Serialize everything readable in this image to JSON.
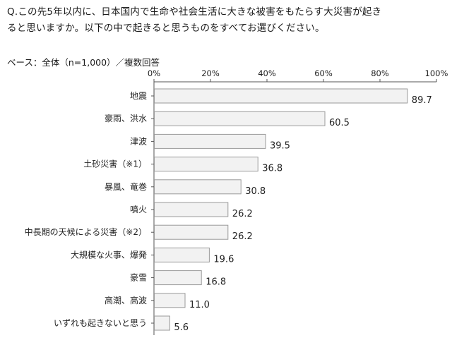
{
  "question": {
    "line1": "Q.この先5年以内に、日本国内で生命や社会生活に大きな被害をもたらす大災害が起き",
    "line2": "ると思いますか。以下の中で起きると思うものをすべてお選びください。"
  },
  "base_note": "ベース：全体（n=1,000）／複数回答",
  "chart_data": {
    "type": "bar",
    "orientation": "horizontal",
    "categories": [
      "地震",
      "豪雨、洪水",
      "津波",
      "土砂災害（※1）",
      "暴風、竜巻",
      "噴火",
      "中長期の天候による災害（※2）",
      "大規模な火事、爆発",
      "豪雪",
      "高潮、高波",
      "いずれも起きないと思う"
    ],
    "values": [
      89.7,
      60.5,
      39.5,
      36.8,
      30.8,
      26.2,
      26.2,
      19.6,
      16.8,
      11.0,
      5.6
    ],
    "value_labels": [
      "89.7",
      "60.5",
      "39.5",
      "36.8",
      "30.8",
      "26.2",
      "26.2",
      "19.6",
      "16.8",
      "11.0",
      "5.6"
    ],
    "xlim": [
      0,
      100
    ],
    "x_ticks": [
      0,
      20,
      40,
      60,
      80,
      100
    ],
    "x_tick_labels": [
      "0%",
      "20%",
      "40%",
      "60%",
      "80%",
      "100%"
    ],
    "axis_position": "top",
    "grid": false,
    "colors": {
      "bar_fill": "#f2f2f2",
      "bar_stroke": "#9a9a9a",
      "axis": "#555555",
      "text": "#222222"
    }
  }
}
